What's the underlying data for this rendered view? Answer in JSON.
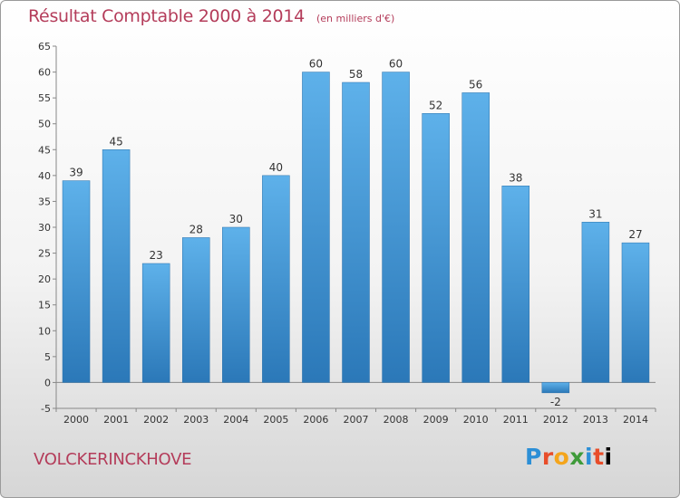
{
  "title": "Résultat Comptable 2000 à 2014",
  "subtitle": "(en milliers d'€)",
  "city": "VOLCKERINCKHOVE",
  "logo": {
    "letters": [
      "P",
      "r",
      "o",
      "x",
      "i",
      "t",
      "i"
    ]
  },
  "chart_data": {
    "type": "bar",
    "categories": [
      "2000",
      "2001",
      "2002",
      "2003",
      "2004",
      "2005",
      "2006",
      "2007",
      "2008",
      "2009",
      "2010",
      "2011",
      "2012",
      "2013",
      "2014"
    ],
    "values": [
      39,
      45,
      23,
      28,
      30,
      40,
      60,
      58,
      60,
      52,
      56,
      38,
      -2,
      31,
      27
    ],
    "title": "Résultat Comptable 2000 à 2014",
    "subtitle": "(en milliers d'€)",
    "ylim": [
      -5,
      65
    ],
    "yticks": [
      -5,
      0,
      5,
      10,
      15,
      20,
      25,
      30,
      35,
      40,
      45,
      50,
      55,
      60,
      65
    ],
    "grid": false,
    "bar_color": "#3f96d8"
  }
}
